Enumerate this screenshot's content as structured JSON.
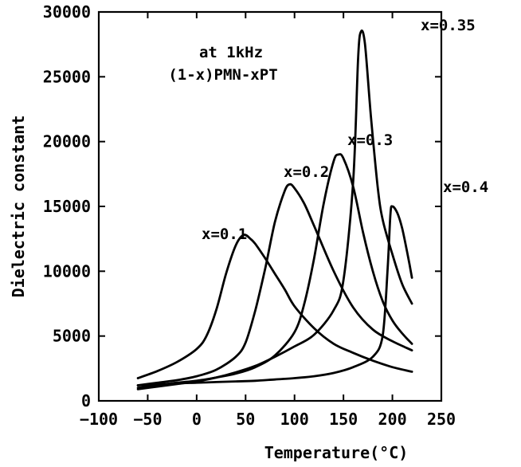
{
  "chart_data": {
    "type": "line",
    "title": "",
    "xlabel": "Temperature(°C)",
    "ylabel": "Dielectric constant",
    "xlim": [
      -100,
      250
    ],
    "ylim": [
      0,
      30000
    ],
    "grid": false,
    "x_ticks": [
      -100,
      -50,
      0,
      50,
      100,
      150,
      200,
      250
    ],
    "y_ticks": [
      0,
      5000,
      10000,
      15000,
      20000,
      25000,
      30000
    ],
    "annotations": [
      "at 1kHz",
      "(1-x)PMN-xPT"
    ],
    "series": [
      {
        "name": "x=0.1",
        "x": [
          -60,
          -40,
          -20,
          0,
          10,
          20,
          30,
          40,
          48,
          55,
          60,
          70,
          80,
          90,
          100,
          120,
          140,
          160,
          180,
          200,
          220
        ],
        "y": [
          1750,
          2300,
          3000,
          4000,
          5000,
          7000,
          9800,
          12000,
          12800,
          12500,
          12100,
          11000,
          9800,
          8600,
          7300,
          5600,
          4400,
          3700,
          3100,
          2600,
          2250
        ]
      },
      {
        "name": "x=0.2",
        "x": [
          -60,
          -40,
          -20,
          0,
          20,
          40,
          50,
          60,
          70,
          80,
          90,
          95,
          100,
          110,
          120,
          140,
          160,
          180,
          200,
          220
        ],
        "y": [
          1200,
          1400,
          1600,
          1900,
          2400,
          3400,
          4500,
          7000,
          10200,
          13800,
          16200,
          16700,
          16400,
          15200,
          13500,
          10000,
          7200,
          5500,
          4600,
          3900
        ]
      },
      {
        "name": "x=0.3",
        "x": [
          -60,
          -40,
          -20,
          0,
          20,
          40,
          60,
          80,
          100,
          110,
          120,
          130,
          140,
          145,
          150,
          160,
          170,
          180,
          190,
          200,
          210,
          220
        ],
        "y": [
          1000,
          1200,
          1400,
          1550,
          1800,
          2100,
          2600,
          3500,
          5300,
          7500,
          11000,
          15300,
          18500,
          19000,
          18700,
          16500,
          13000,
          10000,
          7700,
          6200,
          5200,
          4400
        ]
      },
      {
        "name": "x=0.35",
        "x": [
          -60,
          -40,
          -20,
          0,
          20,
          40,
          60,
          80,
          100,
          120,
          140,
          150,
          160,
          165,
          168,
          172,
          178,
          185,
          190,
          200,
          210,
          220
        ],
        "y": [
          900,
          1100,
          1300,
          1500,
          1800,
          2200,
          2700,
          3400,
          4200,
          5100,
          7000,
          9300,
          17000,
          26500,
          28500,
          27500,
          22000,
          16500,
          14000,
          11300,
          9000,
          7500
        ]
      },
      {
        "name": "x=0.4",
        "x": [
          -60,
          -20,
          0,
          20,
          40,
          60,
          80,
          100,
          120,
          140,
          160,
          180,
          190,
          195,
          198,
          200,
          205,
          210,
          215,
          220
        ],
        "y": [
          1200,
          1350,
          1400,
          1450,
          1500,
          1550,
          1650,
          1750,
          1900,
          2150,
          2600,
          3400,
          5000,
          10000,
          14400,
          15000,
          14500,
          13300,
          11500,
          9500
        ]
      }
    ]
  }
}
